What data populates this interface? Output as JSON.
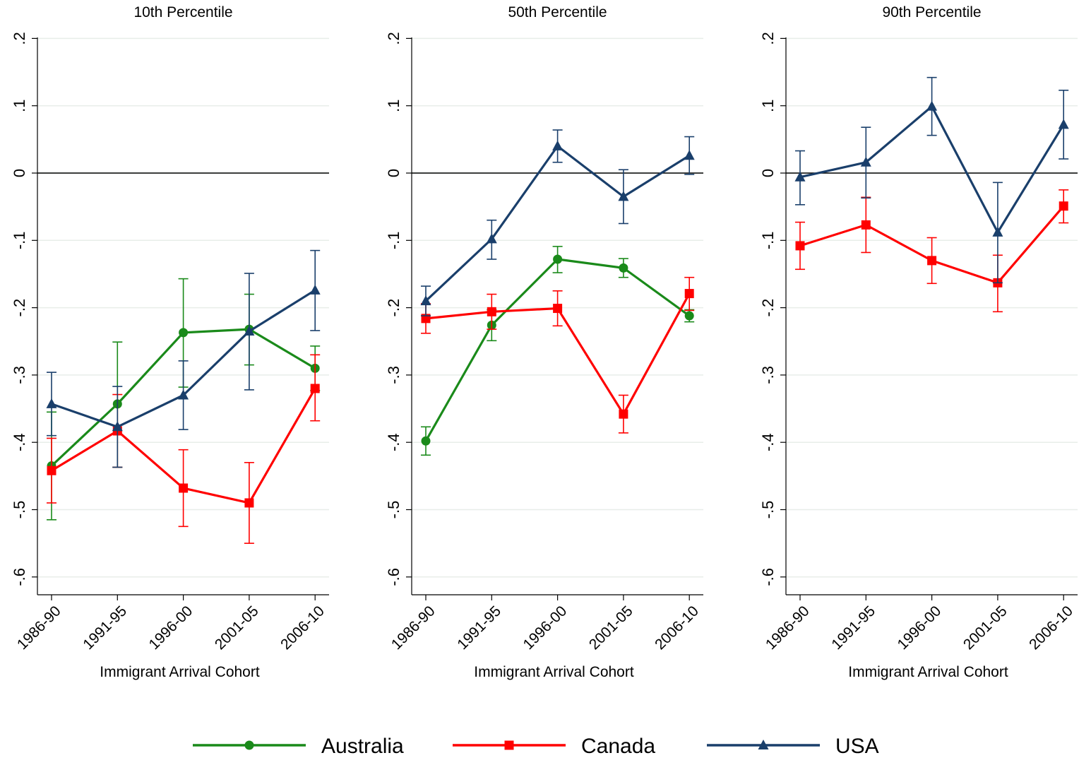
{
  "chart_data": {
    "type": "line",
    "categories": [
      "1986-90",
      "1991-95",
      "1996-00",
      "2001-05",
      "2006-10"
    ],
    "xlabel": "Immigrant Arrival Cohort",
    "yticks": [
      0.2,
      0.1,
      0,
      -0.1,
      -0.2,
      -0.3,
      -0.4,
      -0.5,
      -0.6
    ],
    "ytick_labels": [
      ".2",
      ".1",
      "0",
      "-.1",
      "-.2",
      "-.3",
      "-.4",
      "-.5",
      "-.6"
    ],
    "ylim": [
      -0.62,
      0.2
    ],
    "grid": true,
    "legend_position": "bottom",
    "colors": {
      "Australia": "#1a8a1a",
      "Canada": "#ff0000",
      "USA": "#1a3f6b"
    },
    "markers": {
      "Australia": "circle",
      "Canada": "square",
      "USA": "triangle"
    },
    "panels": [
      {
        "title": "10th Percentile",
        "series": [
          {
            "name": "Australia",
            "values": [
              -0.435,
              -0.343,
              -0.237,
              -0.232,
              -0.29
            ],
            "lower": [
              -0.515,
              -0.437,
              -0.318,
              -0.285,
              -0.323
            ],
            "upper": [
              -0.355,
              -0.251,
              -0.157,
              -0.18,
              -0.257
            ]
          },
          {
            "name": "Canada",
            "values": [
              -0.442,
              -0.383,
              -0.468,
              -0.49,
              -0.32
            ],
            "lower": [
              -0.49,
              -0.437,
              -0.525,
              -0.55,
              -0.368
            ],
            "upper": [
              -0.394,
              -0.329,
              -0.411,
              -0.43,
              -0.27
            ]
          },
          {
            "name": "USA",
            "values": [
              -0.343,
              -0.377,
              -0.33,
              -0.235,
              -0.174
            ],
            "lower": [
              -0.39,
              -0.437,
              -0.381,
              -0.322,
              -0.234
            ],
            "upper": [
              -0.296,
              -0.317,
              -0.279,
              -0.149,
              -0.115
            ]
          }
        ]
      },
      {
        "title": "50th Percentile",
        "series": [
          {
            "name": "Australia",
            "values": [
              -0.398,
              -0.226,
              -0.128,
              -0.141,
              -0.212
            ],
            "lower": [
              -0.419,
              -0.249,
              -0.148,
              -0.155,
              -0.221
            ],
            "upper": [
              -0.377,
              -0.203,
              -0.109,
              -0.127,
              -0.203
            ]
          },
          {
            "name": "Canada",
            "values": [
              -0.216,
              -0.206,
              -0.201,
              -0.358,
              -0.179
            ],
            "lower": [
              -0.238,
              -0.232,
              -0.227,
              -0.386,
              -0.204
            ],
            "upper": [
              -0.194,
              -0.18,
              -0.175,
              -0.33,
              -0.155
            ]
          },
          {
            "name": "USA",
            "values": [
              -0.19,
              -0.098,
              0.04,
              -0.035,
              0.026
            ],
            "lower": [
              -0.212,
              -0.128,
              0.016,
              -0.075,
              -0.002
            ],
            "upper": [
              -0.168,
              -0.07,
              0.064,
              0.005,
              0.054
            ]
          }
        ]
      },
      {
        "title": "90th Percentile",
        "series": [
          {
            "name": "Canada",
            "values": [
              -0.108,
              -0.077,
              -0.13,
              -0.163,
              -0.049
            ],
            "lower": [
              -0.143,
              -0.118,
              -0.164,
              -0.206,
              -0.074
            ],
            "upper": [
              -0.073,
              -0.036,
              -0.096,
              -0.122,
              -0.025
            ]
          },
          {
            "name": "USA",
            "values": [
              -0.006,
              0.016,
              0.099,
              -0.088,
              0.072
            ],
            "lower": [
              -0.047,
              -0.037,
              0.056,
              -0.163,
              0.021
            ],
            "upper": [
              0.033,
              0.068,
              0.142,
              -0.014,
              0.123
            ]
          }
        ]
      }
    ]
  }
}
